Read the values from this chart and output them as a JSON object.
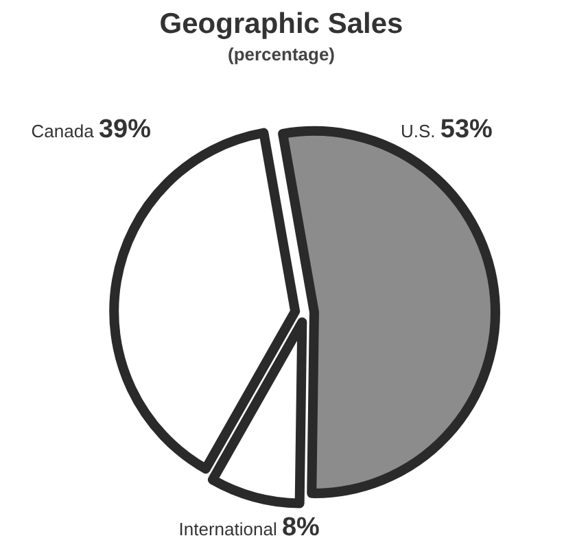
{
  "chart_data": {
    "type": "pie",
    "title": "Geographic Sales",
    "subtitle": "(percentage)",
    "categories": [
      "U.S.",
      "International",
      "Canada"
    ],
    "values": [
      53,
      8,
      39
    ],
    "colors": [
      "#8c8c8c",
      "#ffffff",
      "#ffffff"
    ],
    "value_labels": [
      "53%",
      "8%",
      "39%"
    ]
  }
}
